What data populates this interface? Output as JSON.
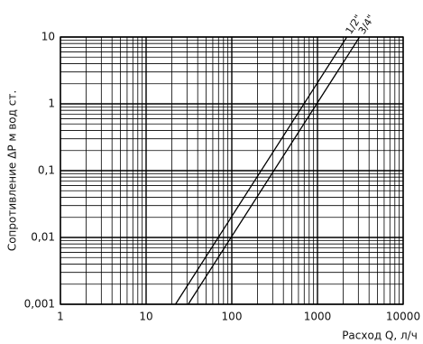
{
  "chart_data": {
    "type": "line",
    "x_label": "Расход Q, л/ч",
    "y_label": "Сопротивление ΔР м вод ст.",
    "log_x": true,
    "log_y": true,
    "grid": true,
    "minor_grid": true,
    "xlim": [
      1,
      10000
    ],
    "ylim": [
      0.001,
      10
    ],
    "xticks": [
      1,
      10,
      100,
      1000,
      10000
    ],
    "yticks": [
      {
        "value": 0.001,
        "label": "0,001"
      },
      {
        "value": 0.01,
        "label": "0,01"
      },
      {
        "value": 0.1,
        "label": "0,1"
      },
      1,
      10
    ],
    "series": [
      {
        "name": "1/2\"",
        "color": "#000000",
        "x": [
          22,
          2200
        ],
        "values": [
          0.001,
          10
        ]
      },
      {
        "name": "3/4\"",
        "color": "#000000",
        "x": [
          31,
          3100
        ],
        "values": [
          0.001,
          10
        ]
      }
    ]
  }
}
